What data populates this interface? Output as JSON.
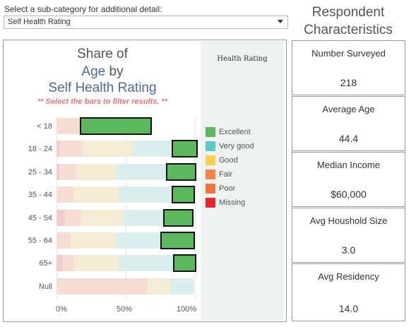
{
  "filter": {
    "label": "Select a sub-category for additional detail:",
    "selected": "Self Health Rating"
  },
  "respondent": {
    "title_line1": "Respondent",
    "title_line2": "Characteristics",
    "cards": [
      {
        "label": "Number Surveyed",
        "value": "218"
      },
      {
        "label": "Average Age",
        "value": "44.4"
      },
      {
        "label": "Median Income",
        "value": "$60,000"
      },
      {
        "label": "Avg Houshold Size",
        "value": "3.0"
      },
      {
        "label": "Avg Residency",
        "value": "14.0"
      }
    ]
  },
  "chart": {
    "title_line1": "Share of",
    "title_line2_a": "Age",
    "title_line2_b": " by",
    "title_line3": "Self Health Rating",
    "hint": "** Select the bars to filter results. **",
    "legend_title": "Health Rating"
  },
  "colors": {
    "Excellent": "#5cb85c",
    "Very good": "#5bc8c8",
    "Good": "#f7d14c",
    "Fair": "#f4844a",
    "Poor": "#f2733a",
    "Missing": "#e8262e",
    "faded_excellent": "#d8f0d8",
    "faded_verygood": "#daeeed",
    "faded_good": "#f4ecd5",
    "faded_fair": "#f6dcd2",
    "faded_poor": "#f5d6cf",
    "faded_missing": "#f3ccd0"
  },
  "chart_data": {
    "type": "bar",
    "orientation": "horizontal-stacked-percent",
    "title": "Share of Age by Self Health Rating",
    "categories": [
      "< 18",
      "18 - 24",
      "25 - 34",
      "35 - 44",
      "45 - 54",
      "55 - 64",
      "65+",
      "Null"
    ],
    "series": [
      {
        "name": "Missing",
        "values": [
          0,
          2,
          2,
          0,
          6,
          0,
          4,
          0
        ]
      },
      {
        "name": "Poor",
        "values": [
          0,
          0,
          0,
          0,
          0,
          0,
          0,
          0
        ]
      },
      {
        "name": "Fair",
        "values": [
          18,
          17,
          12,
          12,
          12,
          10,
          9,
          66
        ]
      },
      {
        "name": "Good",
        "values": [
          0,
          36,
          29,
          33,
          30,
          33,
          32,
          16
        ]
      },
      {
        "name": "Very good",
        "values": [
          0,
          29,
          37,
          39,
          30,
          33,
          40,
          17
        ]
      },
      {
        "name": "Excellent",
        "values": [
          51,
          18,
          21,
          16,
          21,
          24,
          16,
          0
        ]
      }
    ],
    "selected_series": "Excellent",
    "xlim": [
      0,
      100
    ],
    "xticks": [
      "0%",
      "50%",
      "100%"
    ],
    "legend_placement": "right",
    "legend": [
      "Excellent",
      "Very good",
      "Good",
      "Fair",
      "Poor",
      "Missing"
    ]
  }
}
